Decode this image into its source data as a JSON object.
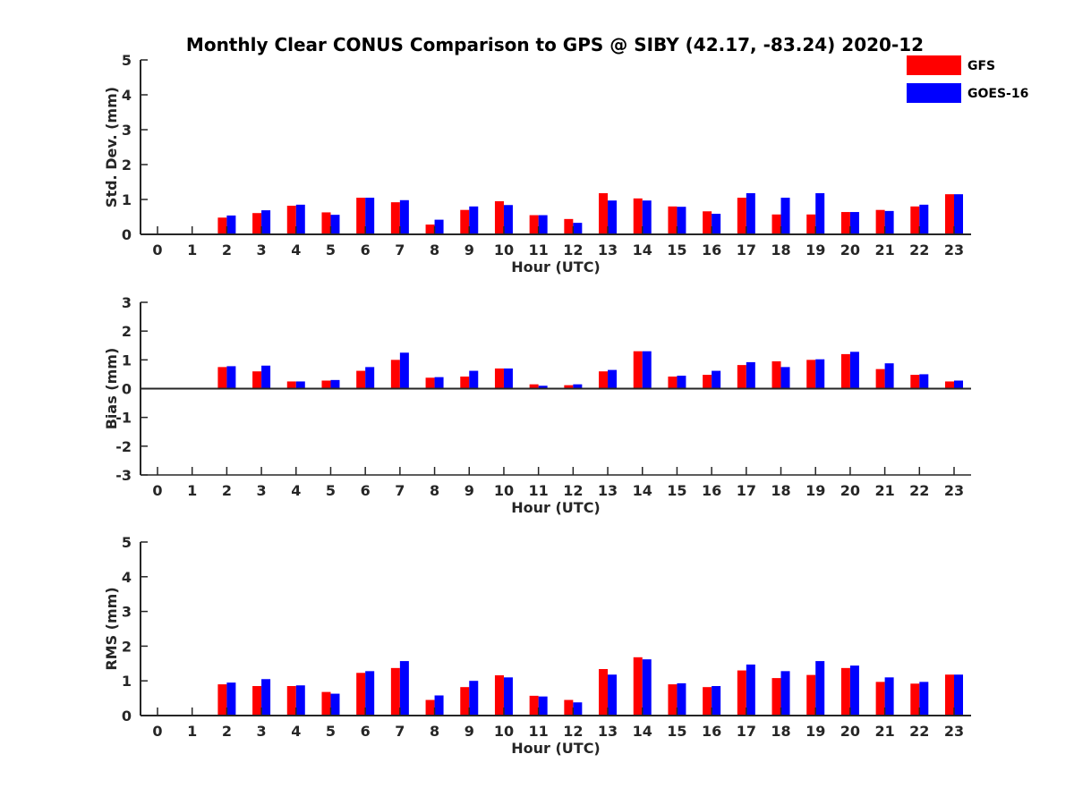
{
  "chart_data": {
    "type": "bar",
    "title": "Monthly Clear CONUS Comparison to GPS @ SIBY (42.17, -83.24) 2020-12",
    "categories": [
      "0",
      "1",
      "2",
      "3",
      "4",
      "5",
      "6",
      "7",
      "8",
      "9",
      "10",
      "11",
      "12",
      "13",
      "14",
      "15",
      "16",
      "17",
      "18",
      "19",
      "20",
      "21",
      "22",
      "23"
    ],
    "legend": {
      "placement": "top-right",
      "entries": [
        {
          "name": "GFS",
          "color": "#ff0000"
        },
        {
          "name": "GOES-16",
          "color": "#0000ff"
        }
      ]
    },
    "panels": [
      {
        "ylabel": "Std. Dev. (mm)",
        "xlabel": "Hour (UTC)",
        "ylim": [
          0,
          5
        ],
        "yticks": [
          "0",
          "1",
          "2",
          "3",
          "4",
          "5"
        ],
        "series": [
          {
            "name": "GFS",
            "values": [
              null,
              null,
              0.48,
              0.61,
              0.82,
              0.63,
              1.05,
              0.92,
              0.28,
              0.7,
              0.95,
              0.55,
              0.44,
              1.18,
              1.03,
              0.8,
              0.66,
              1.05,
              0.57,
              0.57,
              0.64,
              0.7,
              0.8,
              1.15
            ]
          },
          {
            "name": "GOES-16",
            "values": [
              null,
              null,
              0.54,
              0.69,
              0.85,
              0.56,
              1.05,
              0.98,
              0.42,
              0.8,
              0.84,
              0.55,
              0.33,
              0.97,
              0.97,
              0.79,
              0.59,
              1.18,
              1.05,
              1.18,
              0.64,
              0.67,
              0.85,
              1.15
            ]
          }
        ]
      },
      {
        "ylabel": "Bias (mm)",
        "xlabel": "Hour (UTC)",
        "ylim": [
          -3,
          3
        ],
        "yticks": [
          "-3",
          "-2",
          "-1",
          "0",
          "1",
          "2",
          "3"
        ],
        "series": [
          {
            "name": "GFS",
            "values": [
              null,
              null,
              0.75,
              0.6,
              0.25,
              0.28,
              0.62,
              1.0,
              0.38,
              0.42,
              0.7,
              0.15,
              0.12,
              0.6,
              1.3,
              0.42,
              0.48,
              0.82,
              0.95,
              1.0,
              1.2,
              0.68,
              0.48,
              0.25
            ]
          },
          {
            "name": "GOES-16",
            "values": [
              null,
              null,
              0.78,
              0.8,
              0.25,
              0.3,
              0.75,
              1.25,
              0.4,
              0.62,
              0.7,
              0.1,
              0.15,
              0.65,
              1.3,
              0.45,
              0.62,
              0.92,
              0.75,
              1.02,
              1.28,
              0.88,
              0.5,
              0.28
            ]
          }
        ]
      },
      {
        "ylabel": "RMS (mm)",
        "xlabel": "Hour (UTC)",
        "ylim": [
          0,
          5
        ],
        "yticks": [
          "0",
          "1",
          "2",
          "3",
          "4",
          "5"
        ],
        "series": [
          {
            "name": "GFS",
            "values": [
              null,
              null,
              0.9,
              0.85,
              0.85,
              0.68,
              1.23,
              1.37,
              0.45,
              0.82,
              1.16,
              0.57,
              0.45,
              1.34,
              1.68,
              0.9,
              0.82,
              1.3,
              1.08,
              1.17,
              1.37,
              0.97,
              0.92,
              1.18
            ]
          },
          {
            "name": "GOES-16",
            "values": [
              null,
              null,
              0.95,
              1.05,
              0.87,
              0.63,
              1.28,
              1.57,
              0.58,
              1.0,
              1.1,
              0.55,
              0.38,
              1.18,
              1.62,
              0.93,
              0.85,
              1.47,
              1.28,
              1.57,
              1.44,
              1.1,
              0.97,
              1.18
            ]
          }
        ]
      }
    ],
    "grid": false
  }
}
